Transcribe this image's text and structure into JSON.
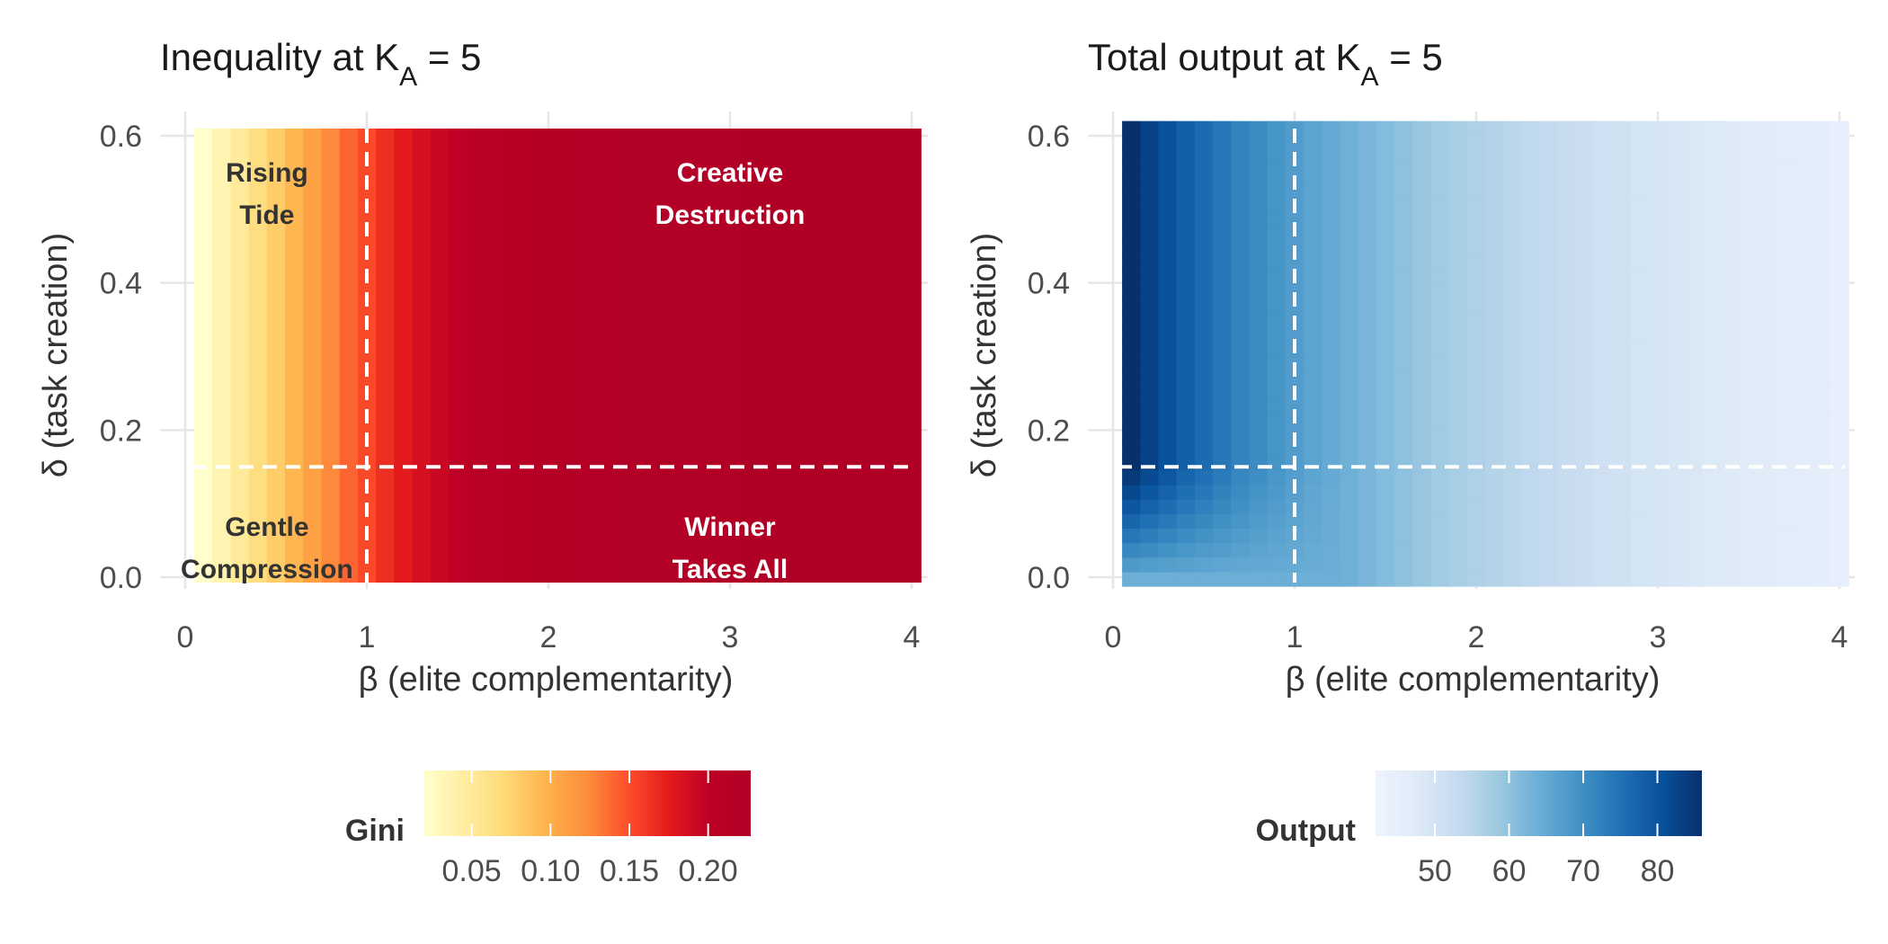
{
  "chart_data": [
    {
      "type": "heatmap",
      "title_main": "Inequality at K",
      "title_sub": "A",
      "title_tail": " = 5",
      "xlabel": "β (elite complementarity)",
      "ylabel": "δ (task creation)",
      "xlim": [
        0,
        4
      ],
      "ylim": [
        0,
        0.6
      ],
      "x_ticks": [
        "0",
        "1",
        "2",
        "3",
        "4"
      ],
      "y_ticks": [
        "0.0",
        "0.2",
        "0.4",
        "0.6"
      ],
      "ref_lines": {
        "x": 1,
        "y": 0.15
      },
      "beta_values": [
        0.1,
        0.2,
        0.3,
        0.4,
        0.5,
        0.6,
        0.7,
        0.8,
        0.9,
        1.0,
        1.1,
        1.2,
        1.3,
        1.4,
        1.5,
        1.6,
        1.7,
        1.8,
        1.9,
        2.0,
        2.1,
        2.2,
        2.3,
        2.4,
        2.5,
        2.6,
        2.7,
        2.8,
        2.9,
        3.0,
        3.1,
        3.2,
        3.3,
        3.4,
        3.5,
        3.6,
        3.7,
        3.8,
        3.9,
        4.0
      ],
      "gini_by_beta": [
        0.02,
        0.035,
        0.05,
        0.065,
        0.08,
        0.095,
        0.11,
        0.125,
        0.14,
        0.152,
        0.165,
        0.175,
        0.185,
        0.193,
        0.2,
        0.205,
        0.209,
        0.212,
        0.215,
        0.217,
        0.219,
        0.22,
        0.221,
        0.222,
        0.223,
        0.224,
        0.224,
        0.225,
        0.225,
        0.225,
        0.226,
        0.226,
        0.226,
        0.226,
        0.226,
        0.227,
        0.227,
        0.227,
        0.227,
        0.227
      ],
      "regions": [
        {
          "lines": [
            "Rising",
            "Tide"
          ],
          "x": 0.45,
          "y": 0.5,
          "color": "#333333"
        },
        {
          "lines": [
            "Creative",
            "Destruction"
          ],
          "x": 3.0,
          "y": 0.5,
          "color": "#ffffff"
        },
        {
          "lines": [
            "Gentle",
            "Compression"
          ],
          "x": 0.45,
          "y": 0.02,
          "color": "#333333"
        },
        {
          "lines": [
            "Winner",
            "Takes All"
          ],
          "x": 3.0,
          "y": 0.02,
          "color": "#ffffff"
        }
      ],
      "legend": {
        "title": "Gini",
        "range": [
          0.02,
          0.227
        ],
        "ticks": [
          "0.05",
          "0.10",
          "0.15",
          "0.20"
        ],
        "tick_values": [
          0.05,
          0.1,
          0.15,
          0.2
        ],
        "colors": [
          "#ffffcc",
          "#ffeda0",
          "#fed976",
          "#feb24c",
          "#fd8d3c",
          "#fc4e2a",
          "#e31a1c",
          "#bd0026",
          "#b10026"
        ]
      }
    },
    {
      "type": "heatmap",
      "title_main": "Total output at K",
      "title_sub": "A",
      "title_tail": " = 5",
      "xlabel": "β (elite complementarity)",
      "ylabel": "δ (task creation)",
      "xlim": [
        0,
        4
      ],
      "ylim": [
        0,
        0.6
      ],
      "x_ticks": [
        "0",
        "1",
        "2",
        "3",
        "4"
      ],
      "y_ticks": [
        "0.0",
        "0.2",
        "0.4",
        "0.6"
      ],
      "ref_lines": {
        "x": 1,
        "y": 0.15
      },
      "beta_values": [
        0.1,
        0.2,
        0.3,
        0.4,
        0.5,
        0.6,
        0.7,
        0.8,
        0.9,
        1.0,
        1.1,
        1.2,
        1.3,
        1.4,
        1.5,
        1.6,
        1.7,
        1.8,
        1.9,
        2.0,
        2.1,
        2.2,
        2.3,
        2.4,
        2.5,
        2.6,
        2.7,
        2.8,
        2.9,
        3.0,
        3.1,
        3.2,
        3.3,
        3.4,
        3.5,
        3.6,
        3.7,
        3.8,
        3.9,
        4.0
      ],
      "output_high_delta_by_beta": [
        86,
        83,
        80.5,
        78,
        76,
        74,
        72,
        70.5,
        69,
        67.5,
        66,
        64.8,
        63.6,
        62.4,
        61.3,
        60.2,
        59.2,
        58.2,
        57.2,
        56.3,
        55.5,
        54.7,
        53.9,
        53.2,
        52.5,
        51.8,
        51.2,
        50.6,
        50,
        49.4,
        48.9,
        48.4,
        47.9,
        47.4,
        47,
        46.6,
        46.2,
        45.8,
        45.4,
        45
      ],
      "low_delta_floor": 64,
      "delta_threshold": 0.15,
      "legend": {
        "title": "Output",
        "range": [
          42,
          86
        ],
        "ticks": [
          "50",
          "60",
          "70",
          "80"
        ],
        "tick_values": [
          50,
          60,
          70,
          80
        ],
        "colors": [
          "#eff3ff",
          "#deebf7",
          "#c6dbef",
          "#9ecae1",
          "#6baed6",
          "#4292c6",
          "#2171b5",
          "#08519c",
          "#08306b"
        ]
      }
    }
  ]
}
